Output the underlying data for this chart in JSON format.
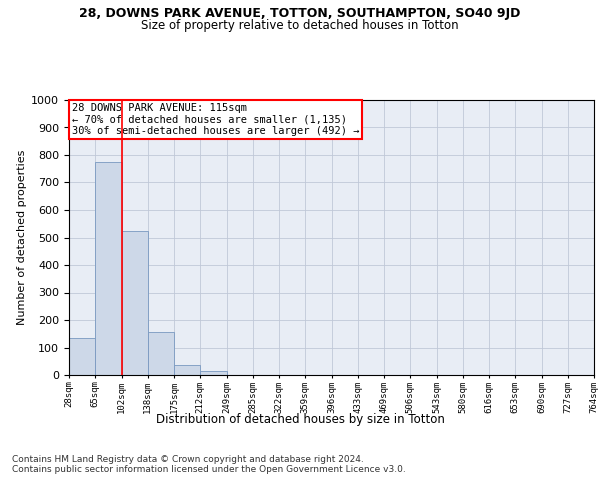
{
  "title1": "28, DOWNS PARK AVENUE, TOTTON, SOUTHAMPTON, SO40 9JD",
  "title2": "Size of property relative to detached houses in Totton",
  "xlabel": "Distribution of detached houses by size in Totton",
  "ylabel": "Number of detached properties",
  "footer": "Contains HM Land Registry data © Crown copyright and database right 2024.\nContains public sector information licensed under the Open Government Licence v3.0.",
  "bin_labels": [
    "28sqm",
    "65sqm",
    "102sqm",
    "138sqm",
    "175sqm",
    "212sqm",
    "249sqm",
    "285sqm",
    "322sqm",
    "359sqm",
    "396sqm",
    "433sqm",
    "469sqm",
    "506sqm",
    "543sqm",
    "580sqm",
    "616sqm",
    "653sqm",
    "690sqm",
    "727sqm",
    "764sqm"
  ],
  "bar_values": [
    135,
    775,
    525,
    155,
    38,
    15,
    0,
    0,
    0,
    0,
    0,
    0,
    0,
    0,
    0,
    0,
    0,
    0,
    0,
    0
  ],
  "bar_color": "#cdd8e8",
  "bar_edge_color": "#7898c0",
  "vline_x": 2.0,
  "vline_color": "red",
  "annotation_box_text": "28 DOWNS PARK AVENUE: 115sqm\n← 70% of detached houses are smaller (1,135)\n30% of semi-detached houses are larger (492) →",
  "annotation_box_color": "red",
  "annotation_box_bg": "white",
  "ylim": [
    0,
    1000
  ],
  "yticks": [
    0,
    100,
    200,
    300,
    400,
    500,
    600,
    700,
    800,
    900,
    1000
  ],
  "grid_color": "#c0c8d8",
  "background_color": "#e8edf5",
  "title1_fontsize": 9,
  "title2_fontsize": 8.5,
  "ylabel_fontsize": 8,
  "xlabel_fontsize": 8.5,
  "ytick_fontsize": 8,
  "xtick_fontsize": 6.5,
  "annotation_fontsize": 7.5,
  "footer_fontsize": 6.5
}
